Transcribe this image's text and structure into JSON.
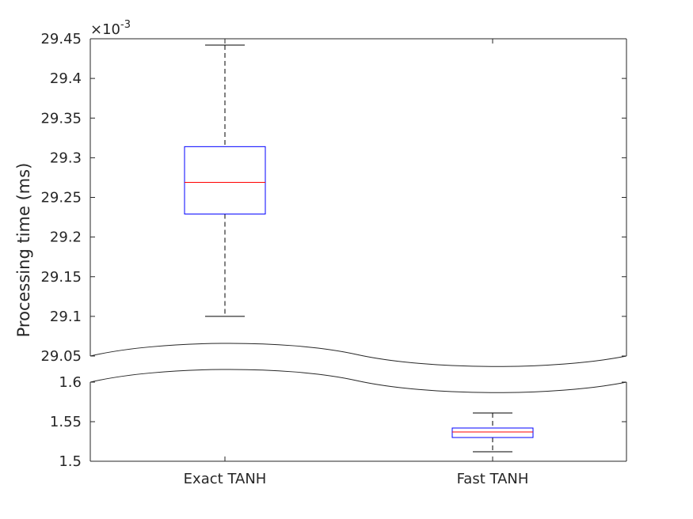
{
  "chart_data": {
    "type": "box",
    "ylabel": "Processing time (ms)",
    "exponent_label": {
      "base": "×10",
      "power": "-3"
    },
    "axis_break": true,
    "upper_panel": {
      "ylim": [
        29.05,
        29.45
      ],
      "ticks": [
        "29.05",
        "29.1",
        "29.15",
        "29.2",
        "29.25",
        "29.3",
        "29.35",
        "29.4",
        "29.45"
      ]
    },
    "lower_panel": {
      "ylim": [
        1.5,
        1.6
      ],
      "ticks": [
        "1.5",
        "1.55",
        "1.6"
      ]
    },
    "categories": [
      "Exact TANH",
      "Fast TANH"
    ],
    "boxes": [
      {
        "category": "Exact TANH",
        "panel": "upper",
        "whisker_low": 29.1,
        "q1": 29.229,
        "median": 29.269,
        "q3": 29.314,
        "whisker_high": 29.442
      },
      {
        "category": "Fast TANH",
        "panel": "lower",
        "whisker_low": 1.512,
        "q1": 1.53,
        "median": 1.537,
        "q3": 1.542,
        "whisker_high": 1.561
      }
    ],
    "colors": {
      "box": "#0000ff",
      "median": "#ff0000",
      "whisker": "#000000",
      "axis": "#262626"
    }
  }
}
